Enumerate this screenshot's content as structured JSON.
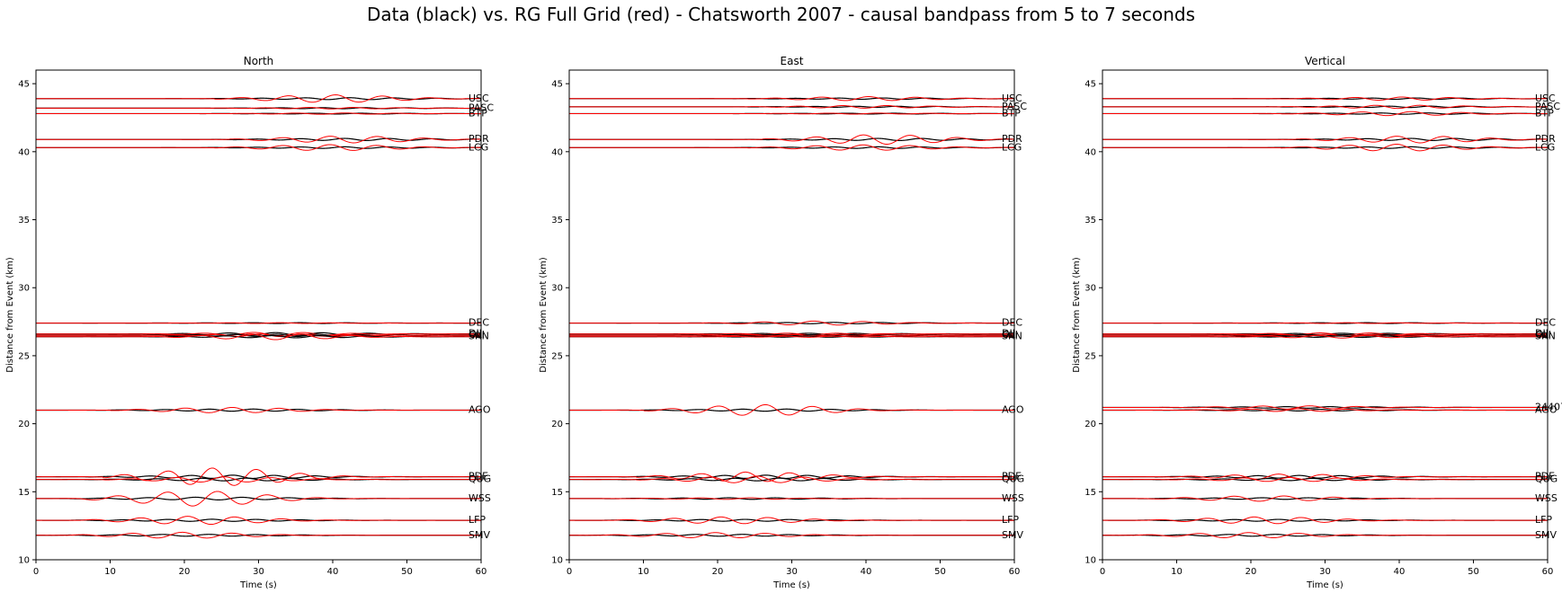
{
  "chart_data": {
    "type": "line",
    "title": "Data (black) vs. RG Full Grid (red) - Chatsworth 2007 - causal bandpass from 5 to 7 seconds",
    "colors": {
      "data": "#000000",
      "synthetic": "#ff0000"
    },
    "panels": [
      {
        "subtitle": "North",
        "xlabel": "Time (s)",
        "ylabel": "Distance from Event (km)",
        "xlim": [
          0,
          60
        ],
        "ylim": [
          10,
          46
        ],
        "xticks": [
          0,
          10,
          20,
          30,
          40,
          50,
          60
        ],
        "yticks": [
          10,
          15,
          20,
          25,
          30,
          35,
          40,
          45
        ],
        "stations": [
          {
            "name": "USC",
            "distance": 43.9,
            "red_amp": 0.28,
            "black_amp": 0.07,
            "onset": 28
          },
          {
            "name": "PASC",
            "distance": 43.2,
            "red_amp": 0.06,
            "black_amp": 0.04,
            "onset": 28
          },
          {
            "name": "BTP",
            "distance": 42.8,
            "red_amp": 0.05,
            "black_amp": 0.03,
            "onset": 28
          },
          {
            "name": "PDR",
            "distance": 40.9,
            "red_amp": 0.25,
            "black_amp": 0.08,
            "onset": 30
          },
          {
            "name": "LCG",
            "distance": 40.3,
            "red_amp": 0.22,
            "black_amp": 0.06,
            "onset": 28
          },
          {
            "name": "DEC",
            "distance": 27.4,
            "red_amp": 0.03,
            "black_amp": 0.03,
            "onset": 20
          },
          {
            "name": "DJJ",
            "distance": 26.6,
            "red_amp": 0.12,
            "black_amp": 0.1,
            "onset": 20
          },
          {
            "name": "OLI",
            "distance": 26.5,
            "red_amp": 0.1,
            "black_amp": 0.08,
            "onset": 20
          },
          {
            "name": "SRN",
            "distance": 26.4,
            "red_amp": 0.22,
            "black_amp": 0.08,
            "onset": 20
          },
          {
            "name": "AGO",
            "distance": 21.0,
            "red_amp": 0.2,
            "black_amp": 0.08,
            "onset": 14
          },
          {
            "name": "PDE",
            "distance": 16.1,
            "red_amp": 0.65,
            "black_amp": 0.12,
            "onset": 13
          },
          {
            "name": "QUG",
            "distance": 15.9,
            "red_amp": 0.2,
            "black_amp": 0.1,
            "onset": 13
          },
          {
            "name": "WSS",
            "distance": 14.5,
            "red_amp": 0.55,
            "black_amp": 0.1,
            "onset": 10
          },
          {
            "name": "LFP",
            "distance": 12.9,
            "red_amp": 0.3,
            "black_amp": 0.08,
            "onset": 10
          },
          {
            "name": "SMV",
            "distance": 11.8,
            "red_amp": 0.22,
            "black_amp": 0.07,
            "onset": 8
          }
        ]
      },
      {
        "subtitle": "East",
        "xlabel": "Time (s)",
        "ylabel": "Distance from Event (km)",
        "xlim": [
          0,
          60
        ],
        "ylim": [
          10,
          46
        ],
        "xticks": [
          0,
          10,
          20,
          30,
          40,
          50,
          60
        ],
        "yticks": [
          10,
          15,
          20,
          25,
          30,
          35,
          40,
          45
        ],
        "stations": [
          {
            "name": "USC",
            "distance": 43.9,
            "red_amp": 0.15,
            "black_amp": 0.05,
            "onset": 28
          },
          {
            "name": "PASC",
            "distance": 43.3,
            "red_amp": 0.1,
            "black_amp": 0.04,
            "onset": 28
          },
          {
            "name": "BTP",
            "distance": 42.8,
            "red_amp": 0.04,
            "black_amp": 0.03,
            "onset": 28
          },
          {
            "name": "PDR",
            "distance": 40.9,
            "red_amp": 0.35,
            "black_amp": 0.08,
            "onset": 30
          },
          {
            "name": "LCG",
            "distance": 40.3,
            "red_amp": 0.2,
            "black_amp": 0.06,
            "onset": 28
          },
          {
            "name": "DEC",
            "distance": 27.4,
            "red_amp": 0.15,
            "black_amp": 0.05,
            "onset": 22
          },
          {
            "name": "DJJ",
            "distance": 26.6,
            "red_amp": 0.06,
            "black_amp": 0.05,
            "onset": 20
          },
          {
            "name": "OLI",
            "distance": 26.5,
            "red_amp": 0.05,
            "black_amp": 0.04,
            "onset": 20
          },
          {
            "name": "SRN",
            "distance": 26.4,
            "red_amp": 0.04,
            "black_amp": 0.04,
            "onset": 20
          },
          {
            "name": "AGO",
            "distance": 21.0,
            "red_amp": 0.4,
            "black_amp": 0.08,
            "onset": 14
          },
          {
            "name": "PDE",
            "distance": 16.1,
            "red_amp": 0.35,
            "black_amp": 0.12,
            "onset": 13
          },
          {
            "name": "QUG",
            "distance": 15.9,
            "red_amp": 0.25,
            "black_amp": 0.1,
            "onset": 13
          },
          {
            "name": "WSS",
            "distance": 14.5,
            "red_amp": 0.06,
            "black_amp": 0.06,
            "onset": 10
          },
          {
            "name": "LFP",
            "distance": 12.9,
            "red_amp": 0.25,
            "black_amp": 0.07,
            "onset": 10
          },
          {
            "name": "SMV",
            "distance": 11.8,
            "red_amp": 0.2,
            "black_amp": 0.07,
            "onset": 8
          }
        ]
      },
      {
        "subtitle": "Vertical",
        "xlabel": "Time (s)",
        "ylabel": "Distance from Event (km)",
        "xlim": [
          0,
          60
        ],
        "ylim": [
          10,
          46
        ],
        "xticks": [
          0,
          10,
          20,
          30,
          40,
          50,
          60
        ],
        "yticks": [
          10,
          15,
          20,
          25,
          30,
          35,
          40,
          45
        ],
        "stations": [
          {
            "name": "USC",
            "distance": 43.9,
            "red_amp": 0.12,
            "black_amp": 0.05,
            "onset": 28
          },
          {
            "name": "PASC",
            "distance": 43.3,
            "red_amp": 0.12,
            "black_amp": 0.05,
            "onset": 28
          },
          {
            "name": "BTP",
            "distance": 42.8,
            "red_amp": 0.15,
            "black_amp": 0.05,
            "onset": 28
          },
          {
            "name": "PDR",
            "distance": 40.9,
            "red_amp": 0.25,
            "black_amp": 0.08,
            "onset": 30
          },
          {
            "name": "LCG",
            "distance": 40.3,
            "red_amp": 0.25,
            "black_amp": 0.06,
            "onset": 28
          },
          {
            "name": "DEC",
            "distance": 27.4,
            "red_amp": 0.03,
            "black_amp": 0.03,
            "onset": 22
          },
          {
            "name": "DJJ",
            "distance": 26.6,
            "red_amp": 0.08,
            "black_amp": 0.05,
            "onset": 20
          },
          {
            "name": "OLI",
            "distance": 26.5,
            "red_amp": 0.07,
            "black_amp": 0.05,
            "onset": 20
          },
          {
            "name": "SRN",
            "distance": 26.4,
            "red_amp": 0.1,
            "black_amp": 0.05,
            "onset": 20
          },
          {
            "name": "24407",
            "distance": 21.2,
            "red_amp": 0.12,
            "black_amp": 0.06,
            "onset": 14
          },
          {
            "name": "AGO",
            "distance": 21.0,
            "red_amp": 0.1,
            "black_amp": 0.06,
            "onset": 14
          },
          {
            "name": "PDE",
            "distance": 16.1,
            "red_amp": 0.2,
            "black_amp": 0.1,
            "onset": 13
          },
          {
            "name": "QUG",
            "distance": 15.9,
            "red_amp": 0.15,
            "black_amp": 0.08,
            "onset": 13
          },
          {
            "name": "WSS",
            "distance": 14.5,
            "red_amp": 0.2,
            "black_amp": 0.06,
            "onset": 10
          },
          {
            "name": "LFP",
            "distance": 12.9,
            "red_amp": 0.25,
            "black_amp": 0.07,
            "onset": 10
          },
          {
            "name": "SMV",
            "distance": 11.8,
            "red_amp": 0.2,
            "black_amp": 0.07,
            "onset": 8
          }
        ]
      }
    ]
  }
}
